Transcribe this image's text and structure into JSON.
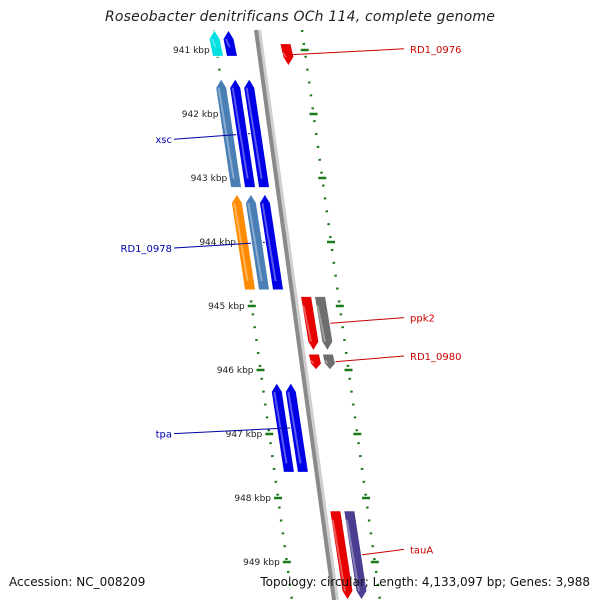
{
  "title": "Roseobacter denitrificans OCh 114, complete genome",
  "footer": {
    "accession": "Accession: NC_008209",
    "summary": "Topology: circular; Length: 4,133,097 bp; Genes: 3,988"
  },
  "scale": {
    "ticks": [
      "941 kbp",
      "942 kbp",
      "943 kbp",
      "944 kbp",
      "945 kbp",
      "946 kbp",
      "947 kbp",
      "948 kbp",
      "949 kbp"
    ],
    "tick_color": "#1a7a1a"
  },
  "colors": {
    "forward_cds": "#0000e6",
    "forward_other": "#00e0e0",
    "forward_rna": "#4a7fb5",
    "forward_misc": "#ff8c00",
    "reverse_cds": "#e60000",
    "reverse_gray": "#6e6e6e",
    "reverse_purple": "#4b3d8f",
    "backbone": "#8a8a8a",
    "label_forward": "#0000aa",
    "label_reverse": "#cc0000"
  },
  "genes": [
    {
      "name": "",
      "strand": "+",
      "start_kbp": 940.5,
      "end_kbp": 941.1,
      "lane": 2,
      "kind": "forward_other"
    },
    {
      "name": "",
      "strand": "+",
      "start_kbp": 940.5,
      "end_kbp": 941.1,
      "lane": 1,
      "kind": "forward_cds"
    },
    {
      "name": "RD1_0976",
      "strand": "-",
      "start_kbp": 940.9,
      "end_kbp": 941.25,
      "lane": 1,
      "kind": "reverse_cds"
    },
    {
      "name": "xsc",
      "strand": "+",
      "start_kbp": 941.45,
      "end_kbp": 943.15,
      "lane": 2,
      "kind": "forward_rna"
    },
    {
      "name": "",
      "strand": "+",
      "start_kbp": 941.45,
      "end_kbp": 943.15,
      "lane": 1,
      "kind": "forward_cds"
    },
    {
      "name": "",
      "strand": "+",
      "start_kbp": 941.45,
      "end_kbp": 943.15,
      "lane": 0,
      "kind": "forward_cds"
    },
    {
      "name": "RD1_0978",
      "strand": "+",
      "start_kbp": 943.25,
      "end_kbp": 944.75,
      "lane": 2,
      "kind": "forward_misc"
    },
    {
      "name": "",
      "strand": "+",
      "start_kbp": 943.25,
      "end_kbp": 944.75,
      "lane": 1,
      "kind": "forward_rna"
    },
    {
      "name": "",
      "strand": "+",
      "start_kbp": 943.25,
      "end_kbp": 944.75,
      "lane": 0,
      "kind": "forward_cds"
    },
    {
      "name": "ppk2",
      "strand": "-",
      "start_kbp": 944.85,
      "end_kbp": 945.7,
      "lane": 0,
      "kind": "reverse_cds"
    },
    {
      "name": "",
      "strand": "-",
      "start_kbp": 944.85,
      "end_kbp": 945.7,
      "lane": 1,
      "kind": "reverse_gray"
    },
    {
      "name": "RD1_0980",
      "strand": "-",
      "start_kbp": 945.75,
      "end_kbp": 946.0,
      "lane": 0,
      "kind": "reverse_cds"
    },
    {
      "name": "",
      "strand": "-",
      "start_kbp": 945.75,
      "end_kbp": 946.0,
      "lane": 1,
      "kind": "reverse_gray"
    },
    {
      "name": "tpa",
      "strand": "+",
      "start_kbp": 946.2,
      "end_kbp": 947.6,
      "lane": 1,
      "kind": "forward_cds"
    },
    {
      "name": "",
      "strand": "+",
      "start_kbp": 946.2,
      "end_kbp": 947.6,
      "lane": 0,
      "kind": "forward_cds"
    },
    {
      "name": "tauA",
      "strand": "-",
      "start_kbp": 948.2,
      "end_kbp": 949.6,
      "lane": 0,
      "kind": "reverse_cds"
    },
    {
      "name": "",
      "strand": "-",
      "start_kbp": 948.2,
      "end_kbp": 949.6,
      "lane": 1,
      "kind": "reverse_purple"
    }
  ]
}
